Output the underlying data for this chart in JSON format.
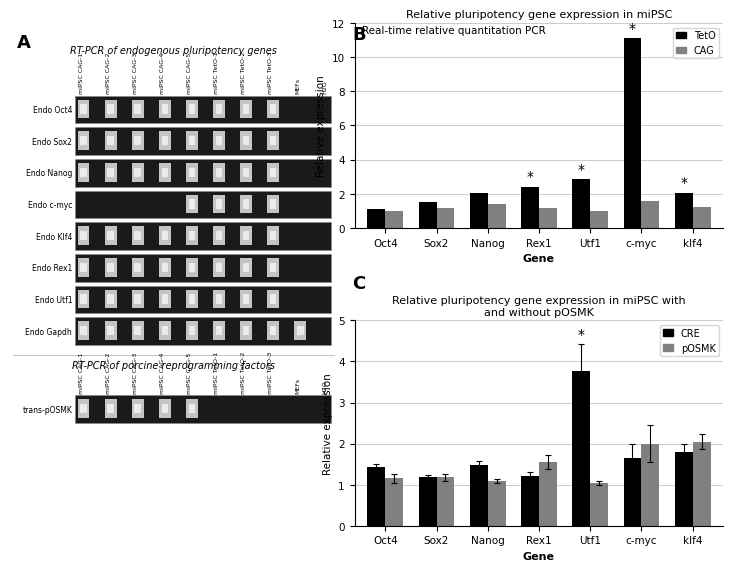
{
  "panel_A_title1": "RT-PCR of endogenous pluripotency genes",
  "panel_A_title2": "RT-PCR of porcine reprogramming factors",
  "panel_A_col_labels": [
    "miPSC CAG-1",
    "miPSC CAG-2",
    "miPSC CAG-3",
    "miPSC CAG-4",
    "miPSC CAG-5",
    "miPSC TetO-1",
    "miPSC TetO-2",
    "miPSC TetO-3",
    "MEFs",
    "H2O"
  ],
  "panel_A_row_labels": [
    "Endo Oct4",
    "Endo Sox2",
    "Endo Nanog",
    "Endo c-myc",
    "Endo Klf4",
    "Endo Rex1",
    "Endo Utf1",
    "Endo Gapdh"
  ],
  "panel_A_row_label2": [
    "trans-pOSMK"
  ],
  "panel_B_title": "Real-time relative quantitation PCR",
  "panel_B_subtitle": "Relative pluripotency gene expression in miPSC",
  "panel_B_genes": [
    "Oct4",
    "Sox2",
    "Nanog",
    "Rex1",
    "Utf1",
    "c-myc",
    "klf4"
  ],
  "panel_B_TetO": [
    1.1,
    1.5,
    2.05,
    2.4,
    2.85,
    11.1,
    2.05
  ],
  "panel_B_CAG": [
    1.0,
    1.15,
    1.4,
    1.15,
    1.0,
    1.55,
    1.2
  ],
  "panel_B_star": [
    false,
    false,
    false,
    true,
    true,
    true,
    true
  ],
  "panel_B_ylim": [
    0,
    12
  ],
  "panel_B_yticks": [
    0,
    2,
    4,
    6,
    8,
    10,
    12
  ],
  "panel_C_title": "Relative pluripotency gene expression in miPSC with\nand without pOSMK",
  "panel_C_genes": [
    "Oct4",
    "Sox2",
    "Nanog",
    "Rex1",
    "Utf1",
    "c-myc",
    "klf4"
  ],
  "panel_C_CRE": [
    1.42,
    1.18,
    1.47,
    1.22,
    3.77,
    1.65,
    1.8
  ],
  "panel_C_pOSMK": [
    1.15,
    1.18,
    1.08,
    1.55,
    1.05,
    2.0,
    2.05
  ],
  "panel_C_CRE_err": [
    0.08,
    0.05,
    0.1,
    0.1,
    0.65,
    0.35,
    0.2
  ],
  "panel_C_pOSMK_err": [
    0.1,
    0.08,
    0.05,
    0.18,
    0.05,
    0.45,
    0.18
  ],
  "panel_C_star": [
    false,
    false,
    false,
    false,
    true,
    false,
    false
  ],
  "panel_C_ylim": [
    0,
    5
  ],
  "panel_C_yticks": [
    0,
    1,
    2,
    3,
    4,
    5
  ],
  "color_black": "#000000",
  "color_gray": "#999999",
  "color_dark_gray": "#808080",
  "bg_color": "#ffffff",
  "gel_dark": "#1a1a1a",
  "gel_band": "#e8e8e8",
  "gel_bright": "#f0f0f0"
}
